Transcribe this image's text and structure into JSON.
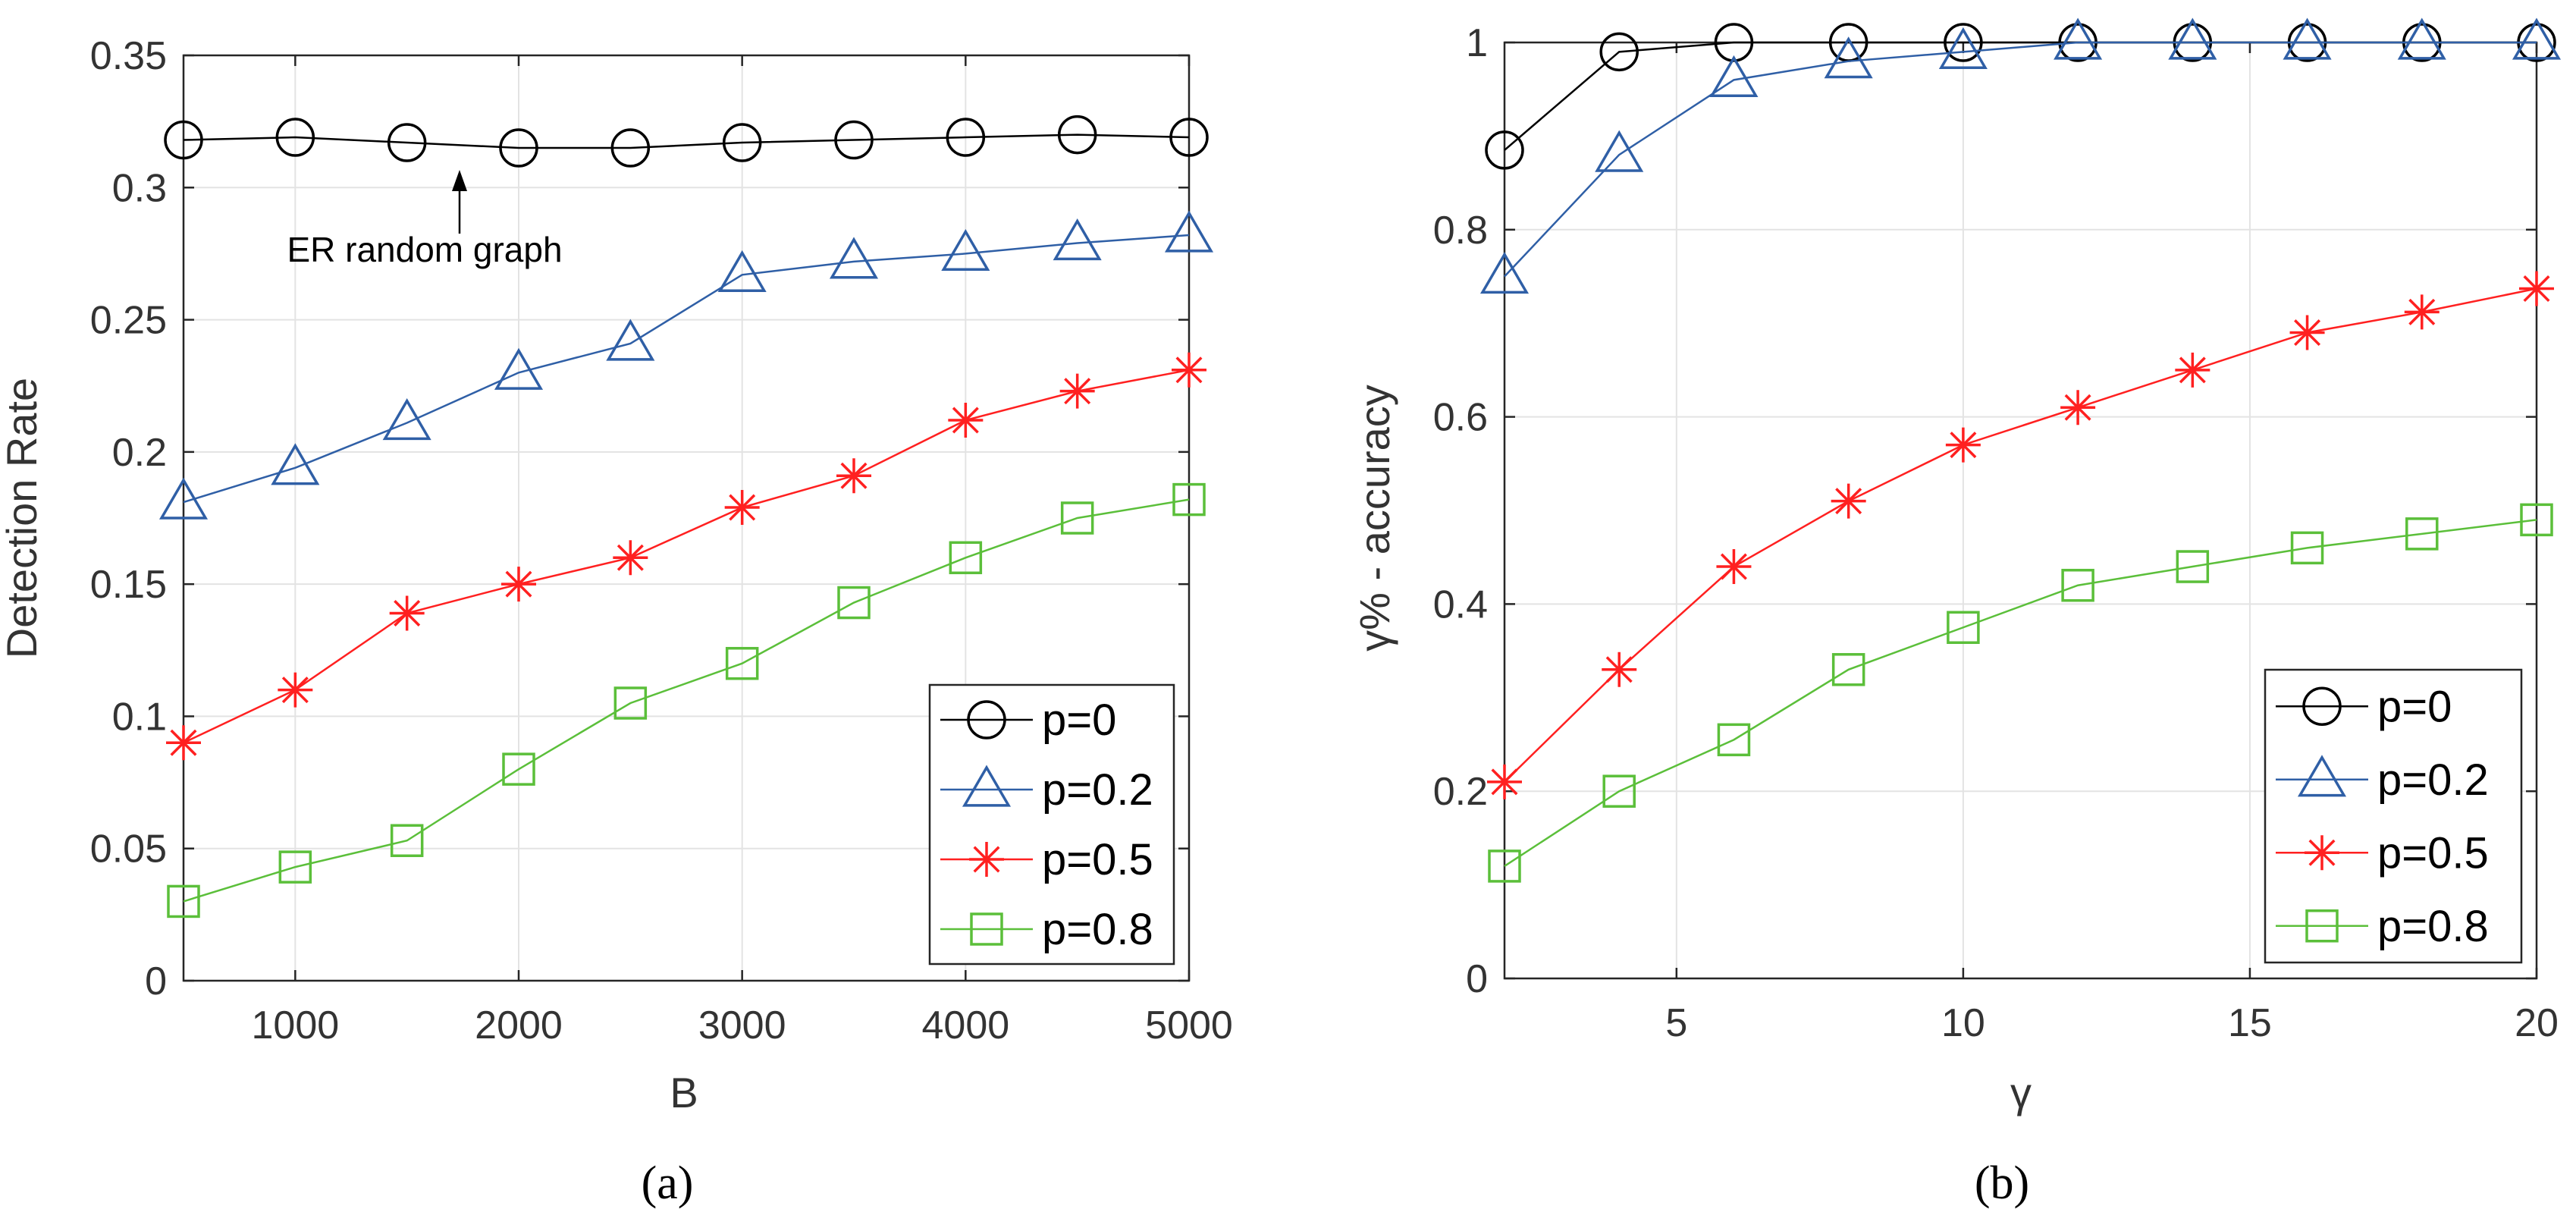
{
  "chart_data": [
    {
      "type": "line",
      "panel_label": "(a)",
      "title": "",
      "xlabel": "B",
      "ylabel": "Detection Rate",
      "xlim": [
        500,
        5000
      ],
      "ylim": [
        0,
        0.35
      ],
      "xticks": [
        1000,
        2000,
        3000,
        4000,
        5000
      ],
      "xtick_labels": [
        "1000",
        "2000",
        "3000",
        "4000",
        "5000"
      ],
      "yticks": [
        0,
        0.05,
        0.1,
        0.15,
        0.2,
        0.25,
        0.3,
        0.35
      ],
      "ytick_labels": [
        "0",
        "0.05",
        "0.1",
        "0.15",
        "0.2",
        "0.25",
        "0.3",
        "0.35"
      ],
      "grid": true,
      "legend_position": "bottom-right",
      "x": [
        500,
        1000,
        1500,
        2000,
        2500,
        3000,
        3500,
        4000,
        4500,
        5000
      ],
      "series": [
        {
          "name": "p=0",
          "color": "#000000",
          "marker": "circle",
          "values": [
            0.318,
            0.319,
            0.317,
            0.315,
            0.315,
            0.317,
            0.318,
            0.319,
            0.32,
            0.319
          ]
        },
        {
          "name": "p=0.2",
          "color": "#2f5fa6",
          "marker": "triangle",
          "values": [
            0.181,
            0.194,
            0.211,
            0.23,
            0.241,
            0.267,
            0.272,
            0.275,
            0.279,
            0.282
          ]
        },
        {
          "name": "p=0.5",
          "color": "#ff2020",
          "marker": "star",
          "values": [
            0.09,
            0.11,
            0.139,
            0.15,
            0.16,
            0.179,
            0.191,
            0.212,
            0.223,
            0.231
          ]
        },
        {
          "name": "p=0.8",
          "color": "#5bbf3a",
          "marker": "square",
          "values": [
            0.03,
            0.043,
            0.053,
            0.08,
            0.105,
            0.12,
            0.143,
            0.16,
            0.175,
            0.182
          ]
        }
      ],
      "annotation": {
        "text": "ER random graph",
        "arrow_to": {
          "x": 1700,
          "y": 0.315
        }
      }
    },
    {
      "type": "line",
      "panel_label": "(b)",
      "title": "",
      "xlabel": "γ",
      "ylabel": "γ% - accuracy",
      "xlim": [
        2,
        20
      ],
      "ylim": [
        0,
        1
      ],
      "xticks": [
        5,
        10,
        15,
        20
      ],
      "xtick_labels": [
        "5",
        "10",
        "15",
        "20"
      ],
      "yticks": [
        0,
        0.2,
        0.4,
        0.6,
        0.8,
        1
      ],
      "ytick_labels": [
        "0",
        "0.2",
        "0.4",
        "0.6",
        "0.8",
        "1"
      ],
      "grid": true,
      "legend_position": "bottom-right",
      "x": [
        2,
        4,
        6,
        8,
        10,
        12,
        14,
        16,
        18,
        20
      ],
      "series": [
        {
          "name": "p=0",
          "color": "#000000",
          "marker": "circle",
          "values": [
            0.885,
            0.99,
            1.0,
            1.0,
            1.0,
            1.0,
            1.0,
            1.0,
            1.0,
            1.0
          ]
        },
        {
          "name": "p=0.2",
          "color": "#2f5fa6",
          "marker": "triangle",
          "values": [
            0.75,
            0.88,
            0.96,
            0.98,
            0.99,
            1.0,
            1.0,
            1.0,
            1.0,
            1.0
          ]
        },
        {
          "name": "p=0.5",
          "color": "#ff2020",
          "marker": "star",
          "values": [
            0.21,
            0.33,
            0.44,
            0.51,
            0.57,
            0.61,
            0.65,
            0.69,
            0.712,
            0.737
          ]
        },
        {
          "name": "p=0.8",
          "color": "#5bbf3a",
          "marker": "square",
          "values": [
            0.12,
            0.2,
            0.255,
            0.33,
            0.375,
            0.42,
            0.44,
            0.46,
            0.475,
            0.49
          ]
        }
      ]
    }
  ]
}
